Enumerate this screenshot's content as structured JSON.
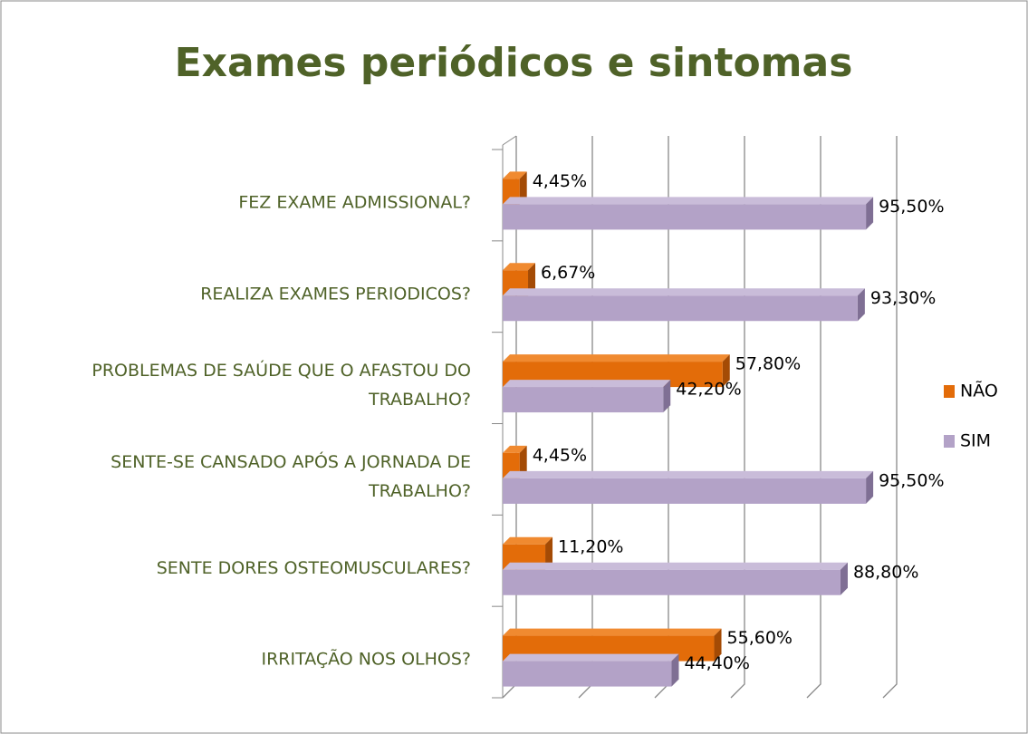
{
  "chart_data": {
    "type": "hbar3d",
    "title": "Exames periódicos e sintomas",
    "categories": [
      "FEZ EXAME ADMISSIONAL?",
      "REALIZA EXAMES PERIODICOS?",
      "PROBLEMAS DE SAÚDE QUE O AFASTOU DO\nTRABALHO?",
      "SENTE-SE CANSADO APÓS A JORNADA DE\nTRABALHO?",
      "SENTE DORES OSTEOMUSCULARES?",
      "IRRITAÇÃO NOS OLHOS?"
    ],
    "series": [
      {
        "name": "NÃO",
        "color": "#e36c09",
        "values": [
          4.45,
          6.67,
          57.8,
          4.45,
          11.2,
          55.6
        ],
        "value_labels": [
          "4,45%",
          "6,67%",
          "57,80%",
          "4,45%",
          "11,20%",
          "55,60%"
        ]
      },
      {
        "name": "SIM",
        "color": "#b3a2c7",
        "values": [
          95.5,
          93.3,
          42.2,
          95.5,
          88.8,
          44.4
        ],
        "value_labels": [
          "95,50%",
          "93,30%",
          "42,20%",
          "95,50%",
          "88,80%",
          "44,40%"
        ]
      }
    ],
    "xlim": [
      0,
      100
    ],
    "xticks": [
      0,
      20,
      40,
      60,
      80,
      100
    ],
    "grid": true,
    "legend": "right"
  }
}
